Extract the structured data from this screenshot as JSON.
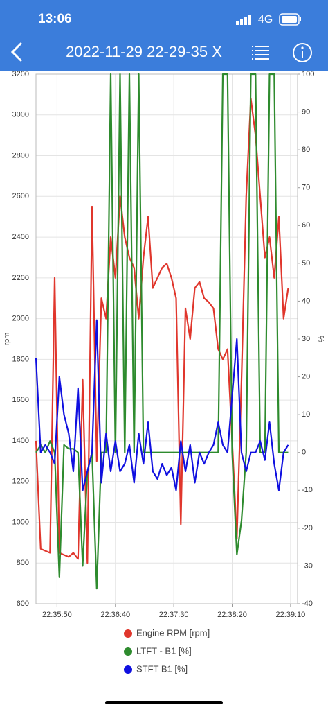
{
  "status_bar": {
    "time": "13:06",
    "network": "4G"
  },
  "header": {
    "title": "2022-11-29 22-29-35 X"
  },
  "chart_data": {
    "type": "line",
    "x": [
      "22:35:32",
      "22:35:36",
      "22:35:40",
      "22:35:44",
      "22:35:48",
      "22:35:52",
      "22:35:56",
      "22:36:00",
      "22:36:04",
      "22:36:08",
      "22:36:12",
      "22:36:16",
      "22:36:20",
      "22:36:24",
      "22:36:28",
      "22:36:32",
      "22:36:36",
      "22:36:40",
      "22:36:44",
      "22:36:48",
      "22:36:52",
      "22:36:56",
      "22:37:00",
      "22:37:04",
      "22:37:08",
      "22:37:12",
      "22:37:16",
      "22:37:20",
      "22:37:24",
      "22:37:28",
      "22:37:32",
      "22:37:36",
      "22:37:40",
      "22:37:44",
      "22:37:48",
      "22:37:52",
      "22:37:56",
      "22:38:00",
      "22:38:04",
      "22:38:08",
      "22:38:12",
      "22:38:16",
      "22:38:20",
      "22:38:24",
      "22:38:28",
      "22:38:32",
      "22:38:36",
      "22:38:40",
      "22:38:44",
      "22:38:48",
      "22:38:52",
      "22:38:56",
      "22:39:00",
      "22:39:04",
      "22:39:08"
    ],
    "series": [
      {
        "name": "Engine RPM [rpm]",
        "color": "#e0362c",
        "values": [
          1400,
          870,
          860,
          850,
          2200,
          850,
          840,
          830,
          850,
          820,
          1700,
          800,
          2550,
          1300,
          2100,
          2000,
          2400,
          2200,
          2600,
          2400,
          2300,
          2250,
          2000,
          2300,
          2500,
          2150,
          2200,
          2250,
          2270,
          2200,
          2100,
          990,
          2050,
          1900,
          2150,
          2180,
          2100,
          2080,
          2050,
          1850,
          1800,
          1850,
          1400,
          920,
          1700,
          2600,
          3080,
          2900,
          2600,
          2300,
          2400,
          2200,
          2500,
          2000,
          2150
        ]
      },
      {
        "name": "LTFT - B1 [%]",
        "color": "#2e8b2e",
        "axis": "y2",
        "values": [
          0,
          2,
          0,
          3,
          0,
          -33,
          2,
          1,
          1,
          0,
          -30,
          -5,
          0,
          -36,
          0,
          0,
          100,
          0,
          100,
          0,
          100,
          0,
          100,
          0,
          0,
          0,
          0,
          0,
          0,
          0,
          0,
          0,
          0,
          0,
          0,
          0,
          0,
          0,
          0,
          0,
          100,
          100,
          0,
          -27,
          -18,
          0,
          100,
          100,
          0,
          0,
          100,
          100,
          0,
          0,
          0
        ]
      },
      {
        "name": "STFT B1 [%]",
        "color": "#1010e0",
        "axis": "y2",
        "values": [
          25,
          0,
          2,
          0,
          -3,
          20,
          10,
          5,
          -5,
          17,
          -10,
          -5,
          0,
          35,
          -8,
          5,
          -5,
          3,
          -5,
          -3,
          2,
          -8,
          5,
          -3,
          8,
          -5,
          -7,
          -3,
          -6,
          -4,
          -10,
          3,
          -5,
          2,
          -8,
          0,
          -3,
          0,
          2,
          8,
          2,
          0,
          15,
          30,
          0,
          -5,
          0,
          0,
          3,
          -2,
          8,
          -3,
          -10,
          0,
          2
        ]
      }
    ],
    "xlim": [
      "22:35:32",
      "22:39:16"
    ],
    "xticks": [
      "22:35:50",
      "22:36:40",
      "22:37:30",
      "22:38:20",
      "22:39:10"
    ],
    "ylim": [
      600,
      3200
    ],
    "yticks": [
      600,
      800,
      1000,
      1200,
      1400,
      1600,
      1800,
      2000,
      2200,
      2400,
      2600,
      2800,
      3000,
      3200
    ],
    "y2lim": [
      -40,
      100
    ],
    "y2ticks": [
      -40,
      -30,
      -20,
      -10,
      0,
      10,
      20,
      30,
      40,
      50,
      60,
      70,
      80,
      90,
      100
    ],
    "ylabel": "rpm",
    "y2label": "%",
    "grid": true
  }
}
